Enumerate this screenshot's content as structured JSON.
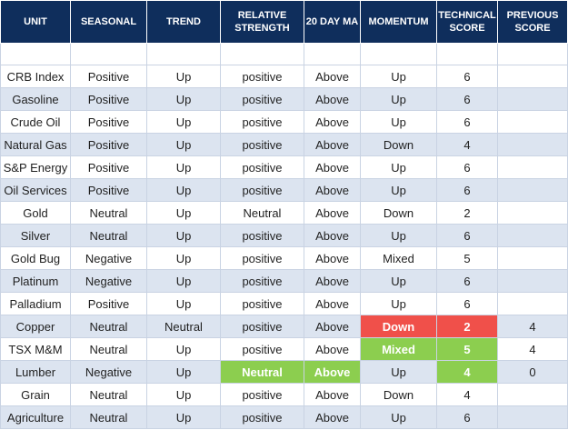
{
  "columns": [
    "UNIT",
    "SEASONAL",
    "TREND",
    "RELATIVE STRENGTH",
    "20 DAY MA",
    "MOMENTUM",
    "TECHNICAL SCORE",
    "PREVIOUS SCORE"
  ],
  "rows": [
    {
      "unit": "CRB Index",
      "seasonal": "Positive",
      "trend": "Up",
      "rel_strength": "positive",
      "ma20": "Above",
      "momentum": "Up",
      "tech_score": "6",
      "prev_score": ""
    },
    {
      "unit": "Gasoline",
      "seasonal": "Positive",
      "trend": "Up",
      "rel_strength": "positive",
      "ma20": "Above",
      "momentum": "Up",
      "tech_score": "6",
      "prev_score": ""
    },
    {
      "unit": "Crude Oil",
      "seasonal": "Positive",
      "trend": "Up",
      "rel_strength": "positive",
      "ma20": "Above",
      "momentum": "Up",
      "tech_score": "6",
      "prev_score": ""
    },
    {
      "unit": "Natural Gas",
      "seasonal": "Positive",
      "trend": "Up",
      "rel_strength": "positive",
      "ma20": "Above",
      "momentum": "Down",
      "tech_score": "4",
      "prev_score": ""
    },
    {
      "unit": "S&P Energy",
      "seasonal": "Positive",
      "trend": "Up",
      "rel_strength": "positive",
      "ma20": "Above",
      "momentum": "Up",
      "tech_score": "6",
      "prev_score": ""
    },
    {
      "unit": "Oil Services",
      "seasonal": "Positive",
      "trend": "Up",
      "rel_strength": "positive",
      "ma20": "Above",
      "momentum": "Up",
      "tech_score": "6",
      "prev_score": ""
    },
    {
      "unit": "Gold",
      "seasonal": "Neutral",
      "trend": "Up",
      "rel_strength": "Neutral",
      "ma20": "Above",
      "momentum": "Down",
      "tech_score": "2",
      "prev_score": ""
    },
    {
      "unit": "Silver",
      "seasonal": "Neutral",
      "trend": "Up",
      "rel_strength": "positive",
      "ma20": "Above",
      "momentum": "Up",
      "tech_score": "6",
      "prev_score": ""
    },
    {
      "unit": "Gold Bug",
      "seasonal": "Negative",
      "trend": "Up",
      "rel_strength": "positive",
      "ma20": "Above",
      "momentum": "Mixed",
      "tech_score": "5",
      "prev_score": ""
    },
    {
      "unit": "Platinum",
      "seasonal": "Negative",
      "trend": "Up",
      "rel_strength": "positive",
      "ma20": "Above",
      "momentum": "Up",
      "tech_score": "6",
      "prev_score": ""
    },
    {
      "unit": "Palladium",
      "seasonal": "Positive",
      "trend": "Up",
      "rel_strength": "positive",
      "ma20": "Above",
      "momentum": "Up",
      "tech_score": "6",
      "prev_score": ""
    },
    {
      "unit": "Copper",
      "seasonal": "Neutral",
      "trend": "Neutral",
      "rel_strength": "positive",
      "ma20": "Above",
      "momentum": "Down",
      "tech_score": "2",
      "prev_score": "4"
    },
    {
      "unit": "TSX M&M",
      "seasonal": "Neutral",
      "trend": "Up",
      "rel_strength": "positive",
      "ma20": "Above",
      "momentum": "Mixed",
      "tech_score": "5",
      "prev_score": "4"
    },
    {
      "unit": "Lumber",
      "seasonal": "Negative",
      "trend": "Up",
      "rel_strength": "Neutral",
      "ma20": "Above",
      "momentum": "Up",
      "tech_score": "4",
      "prev_score": "0"
    },
    {
      "unit": "Grain",
      "seasonal": "Neutral",
      "trend": "Up",
      "rel_strength": "positive",
      "ma20": "Above",
      "momentum": "Down",
      "tech_score": "4",
      "prev_score": ""
    },
    {
      "unit": "Agriculture",
      "seasonal": "Neutral",
      "trend": "Up",
      "rel_strength": "positive",
      "ma20": "Above",
      "momentum": "Up",
      "tech_score": "6",
      "prev_score": ""
    }
  ],
  "highlights": [
    {
      "row": 11,
      "field": "momentum",
      "color": "red"
    },
    {
      "row": 11,
      "field": "tech_score",
      "color": "red"
    },
    {
      "row": 12,
      "field": "momentum",
      "color": "green"
    },
    {
      "row": 12,
      "field": "tech_score",
      "color": "green"
    },
    {
      "row": 13,
      "field": "rel_strength",
      "color": "green"
    },
    {
      "row": 13,
      "field": "ma20",
      "color": "green"
    },
    {
      "row": 13,
      "field": "tech_score",
      "color": "green"
    }
  ],
  "colors": {
    "header_bg": "#0f2e5c",
    "row_alt": "#dce4f0",
    "red": "#f0504a",
    "green": "#8cce4f"
  }
}
